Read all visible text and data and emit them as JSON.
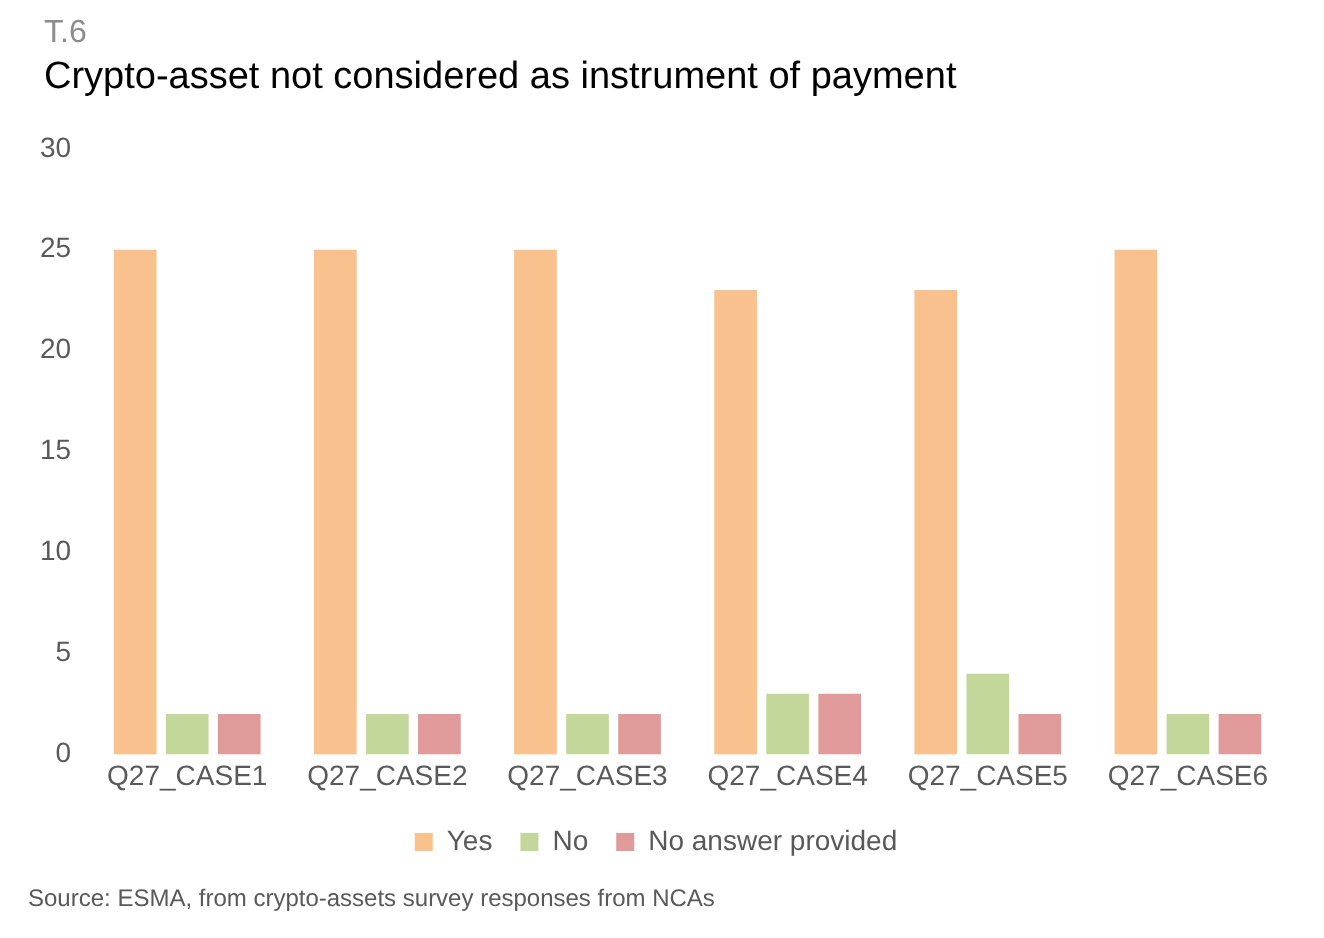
{
  "chart_data": {
    "type": "bar",
    "subtitle": "T.6",
    "title": "Crypto-asset not considered as instrument of payment",
    "categories": [
      "Q27_CASE1",
      "Q27_CASE2",
      "Q27_CASE3",
      "Q27_CASE4",
      "Q27_CASE5",
      "Q27_CASE6"
    ],
    "series": [
      {
        "name": "Yes",
        "color": "#f8c18e",
        "values": [
          25,
          25,
          25,
          23,
          23,
          25
        ]
      },
      {
        "name": "No",
        "color": "#c4d79b",
        "values": [
          2,
          2,
          2,
          3,
          4,
          2
        ]
      },
      {
        "name": "No answer provided",
        "color": "#e09a9a",
        "values": [
          2,
          2,
          2,
          3,
          2,
          2
        ]
      }
    ],
    "ylim": [
      0,
      30
    ],
    "yticks": [
      0,
      5,
      10,
      15,
      20,
      25,
      30
    ],
    "grid": false,
    "legend": "bottom",
    "annotations": [
      "Source: ESMA, from crypto-assets survey responses from NCAs"
    ]
  }
}
